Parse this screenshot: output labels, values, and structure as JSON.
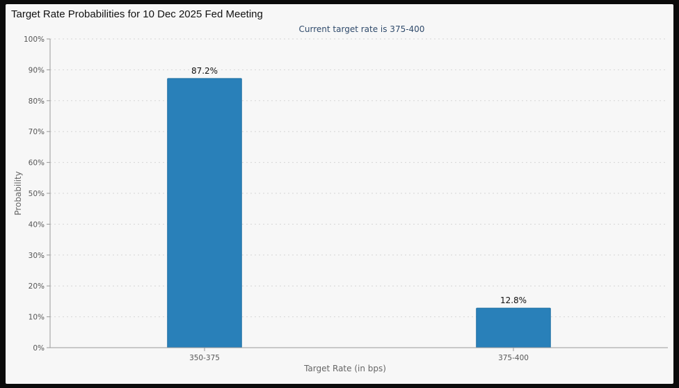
{
  "chart_data": {
    "type": "bar",
    "title": "Target Rate Probabilities for 10 Dec 2025 Fed Meeting",
    "subtitle": "Current target rate is 375-400",
    "xlabel": "Target Rate (in bps)",
    "ylabel": "Probability",
    "categories": [
      "350-375",
      "375-400"
    ],
    "values": [
      87.2,
      12.8
    ],
    "data_labels": [
      "87.2%",
      "12.8%"
    ],
    "ylim": [
      0,
      100
    ],
    "yticks": [
      "0%",
      "10%",
      "20%",
      "30%",
      "40%",
      "50%",
      "60%",
      "70%",
      "80%",
      "90%",
      "100%"
    ],
    "grid": true,
    "bar_color": "#2980b9",
    "bar_border_color": "#1f6fa3"
  }
}
